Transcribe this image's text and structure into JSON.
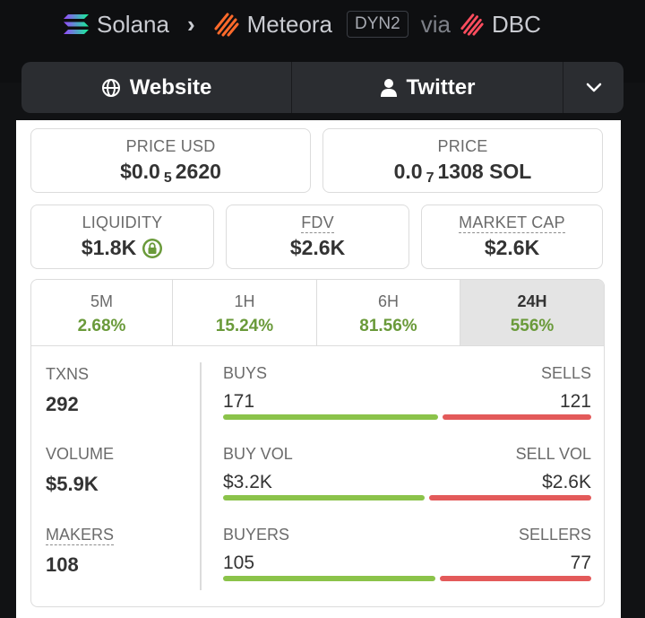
{
  "breadcrumb": {
    "chain": "Solana",
    "dex": "Meteora",
    "pool_type": "DYN2",
    "via": "via",
    "launchpad": "DBC"
  },
  "links": {
    "website": "Website",
    "twitter": "Twitter"
  },
  "metrics": {
    "price_usd_label": "PRICE USD",
    "price_usd_prefix": "$0.0",
    "price_usd_zeros": "5",
    "price_usd_digits": "2620",
    "price_label": "PRICE",
    "price_prefix": "0.0",
    "price_zeros": "7",
    "price_digits": "1308 SOL",
    "liquidity_label": "LIQUIDITY",
    "liquidity_value": "$1.8K",
    "fdv_label": "FDV",
    "fdv_value": "$2.6K",
    "mcap_label": "MARKET CAP",
    "mcap_value": "$2.6K"
  },
  "timeframes": [
    {
      "label": "5M",
      "value": "2.68%"
    },
    {
      "label": "1H",
      "value": "15.24%"
    },
    {
      "label": "6H",
      "value": "81.56%"
    },
    {
      "label": "24H",
      "value": "556%"
    }
  ],
  "stats": {
    "txns_label": "TXNS",
    "txns_value": "292",
    "volume_label": "VOLUME",
    "volume_value": "$5.9K",
    "makers_label": "MAKERS",
    "makers_value": "108",
    "buys_label": "BUYS",
    "buys_value": "171",
    "sells_label": "SELLS",
    "sells_value": "121",
    "buyvol_label": "BUY VOL",
    "buyvol_value": "$3.2K",
    "sellvol_label": "SELL VOL",
    "sellvol_value": "$2.6K",
    "buyers_label": "BUYERS",
    "buyers_value": "105",
    "sellers_label": "SELLERS",
    "sellers_value": "77"
  },
  "colors": {
    "positive": "#6a9a3a",
    "buy_bar": "#8bc34a",
    "sell_bar": "#e35a5a"
  }
}
